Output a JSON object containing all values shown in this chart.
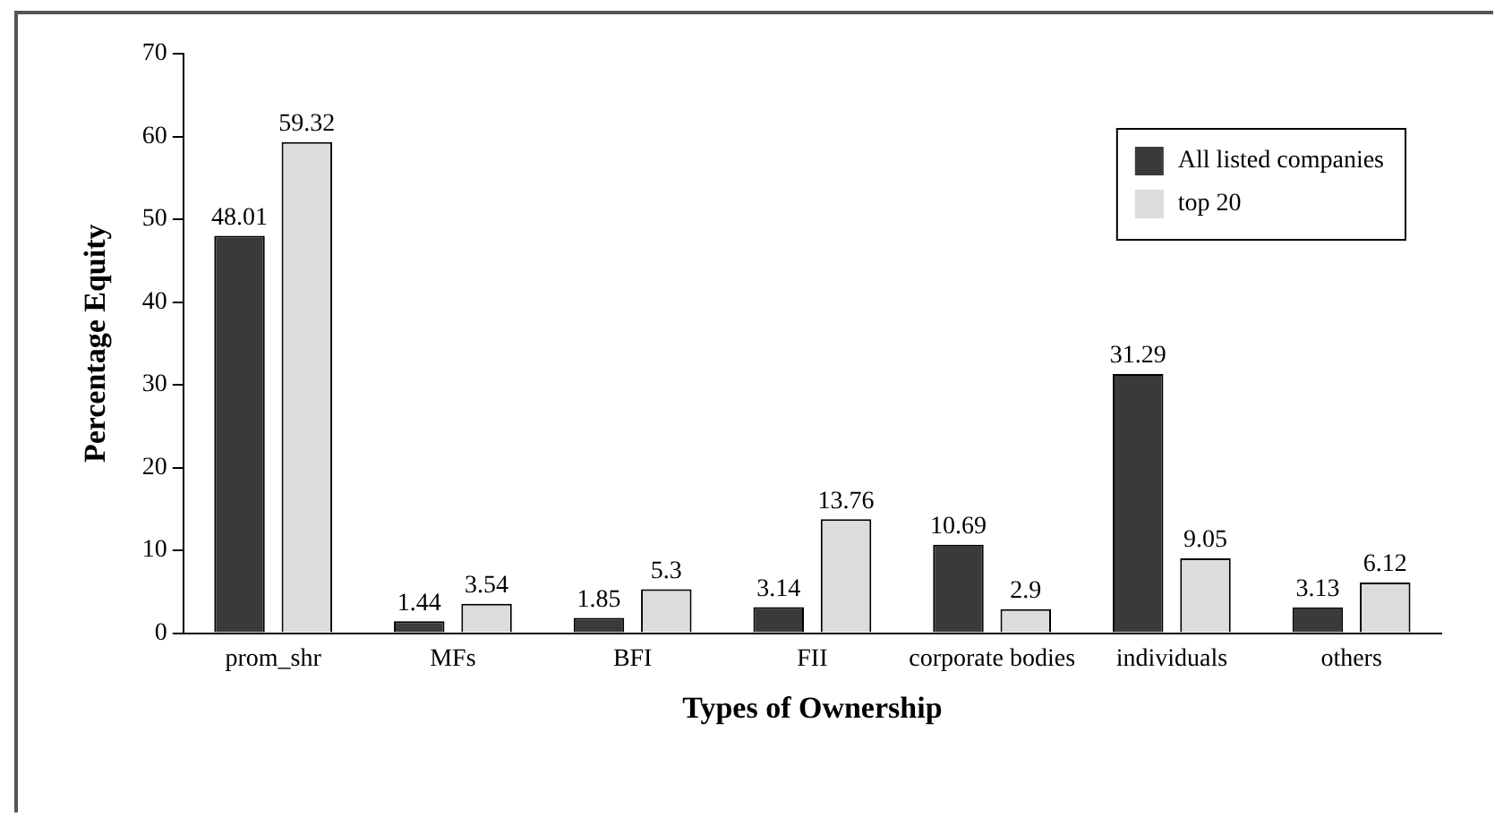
{
  "chart_data": {
    "type": "bar",
    "xlabel": "Types of Ownership",
    "ylabel": "Percentage Equity",
    "categories": [
      "prom_shr",
      "MFs",
      "BFI",
      "FII",
      "corporate bodies",
      "individuals",
      "others"
    ],
    "series": [
      {
        "name": "All listed companies",
        "color": "#3a3a3a",
        "values": [
          48.01,
          1.44,
          1.85,
          3.14,
          10.69,
          31.29,
          3.13
        ]
      },
      {
        "name": "top 20",
        "color": "#dcdcdc",
        "values": [
          59.32,
          3.54,
          5.3,
          13.76,
          2.9,
          9.05,
          6.12
        ]
      }
    ],
    "ylim": [
      0,
      70
    ],
    "yticks": [
      0,
      10,
      20,
      30,
      40,
      50,
      60,
      70
    ],
    "grid": false,
    "legend": "top right",
    "data_labels": true
  }
}
